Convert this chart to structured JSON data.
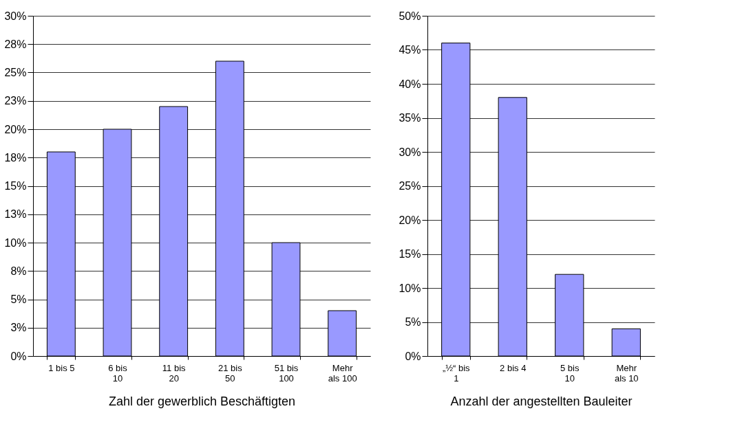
{
  "chart_data": [
    {
      "type": "bar",
      "xlabel": "Zahl der gewerblich Beschäftigten",
      "categories": [
        "1 bis 5",
        "6 bis\n10",
        "11 bis\n20",
        "21 bis\n50",
        "51 bis\n100",
        "Mehr\nals 100"
      ],
      "values": [
        18,
        20,
        22,
        26,
        10,
        4
      ],
      "color": "#9999ff",
      "ylim": [
        0,
        30
      ],
      "yticks": [
        {
          "value": 0,
          "label": "0%"
        },
        {
          "value": 2.5,
          "label": "3%"
        },
        {
          "value": 5,
          "label": "5%"
        },
        {
          "value": 7.5,
          "label": "8%"
        },
        {
          "value": 10,
          "label": "10%"
        },
        {
          "value": 12.5,
          "label": "13%"
        },
        {
          "value": 15,
          "label": "15%"
        },
        {
          "value": 17.5,
          "label": "18%"
        },
        {
          "value": 20,
          "label": "20%"
        },
        {
          "value": 22.5,
          "label": "23%"
        },
        {
          "value": 25,
          "label": "25%"
        },
        {
          "value": 27.5,
          "label": "28%"
        },
        {
          "value": 30,
          "label": "30%"
        }
      ],
      "grid": "y"
    },
    {
      "type": "bar",
      "xlabel": "Anzahl der angestellten Bauleiter",
      "categories": [
        "„½“ bis\n1",
        "2 bis 4",
        "5 bis\n10",
        "Mehr\nals 10"
      ],
      "values": [
        46,
        38,
        12,
        4
      ],
      "color": "#9999ff",
      "ylim": [
        0,
        50
      ],
      "yticks": [
        {
          "value": 0,
          "label": "0%"
        },
        {
          "value": 5,
          "label": "5%"
        },
        {
          "value": 10,
          "label": "10%"
        },
        {
          "value": 15,
          "label": "15%"
        },
        {
          "value": 20,
          "label": "20%"
        },
        {
          "value": 25,
          "label": "25%"
        },
        {
          "value": 30,
          "label": "30%"
        },
        {
          "value": 35,
          "label": "35%"
        },
        {
          "value": 40,
          "label": "40%"
        },
        {
          "value": 45,
          "label": "45%"
        },
        {
          "value": 50,
          "label": "50%"
        }
      ],
      "grid": "y"
    }
  ]
}
